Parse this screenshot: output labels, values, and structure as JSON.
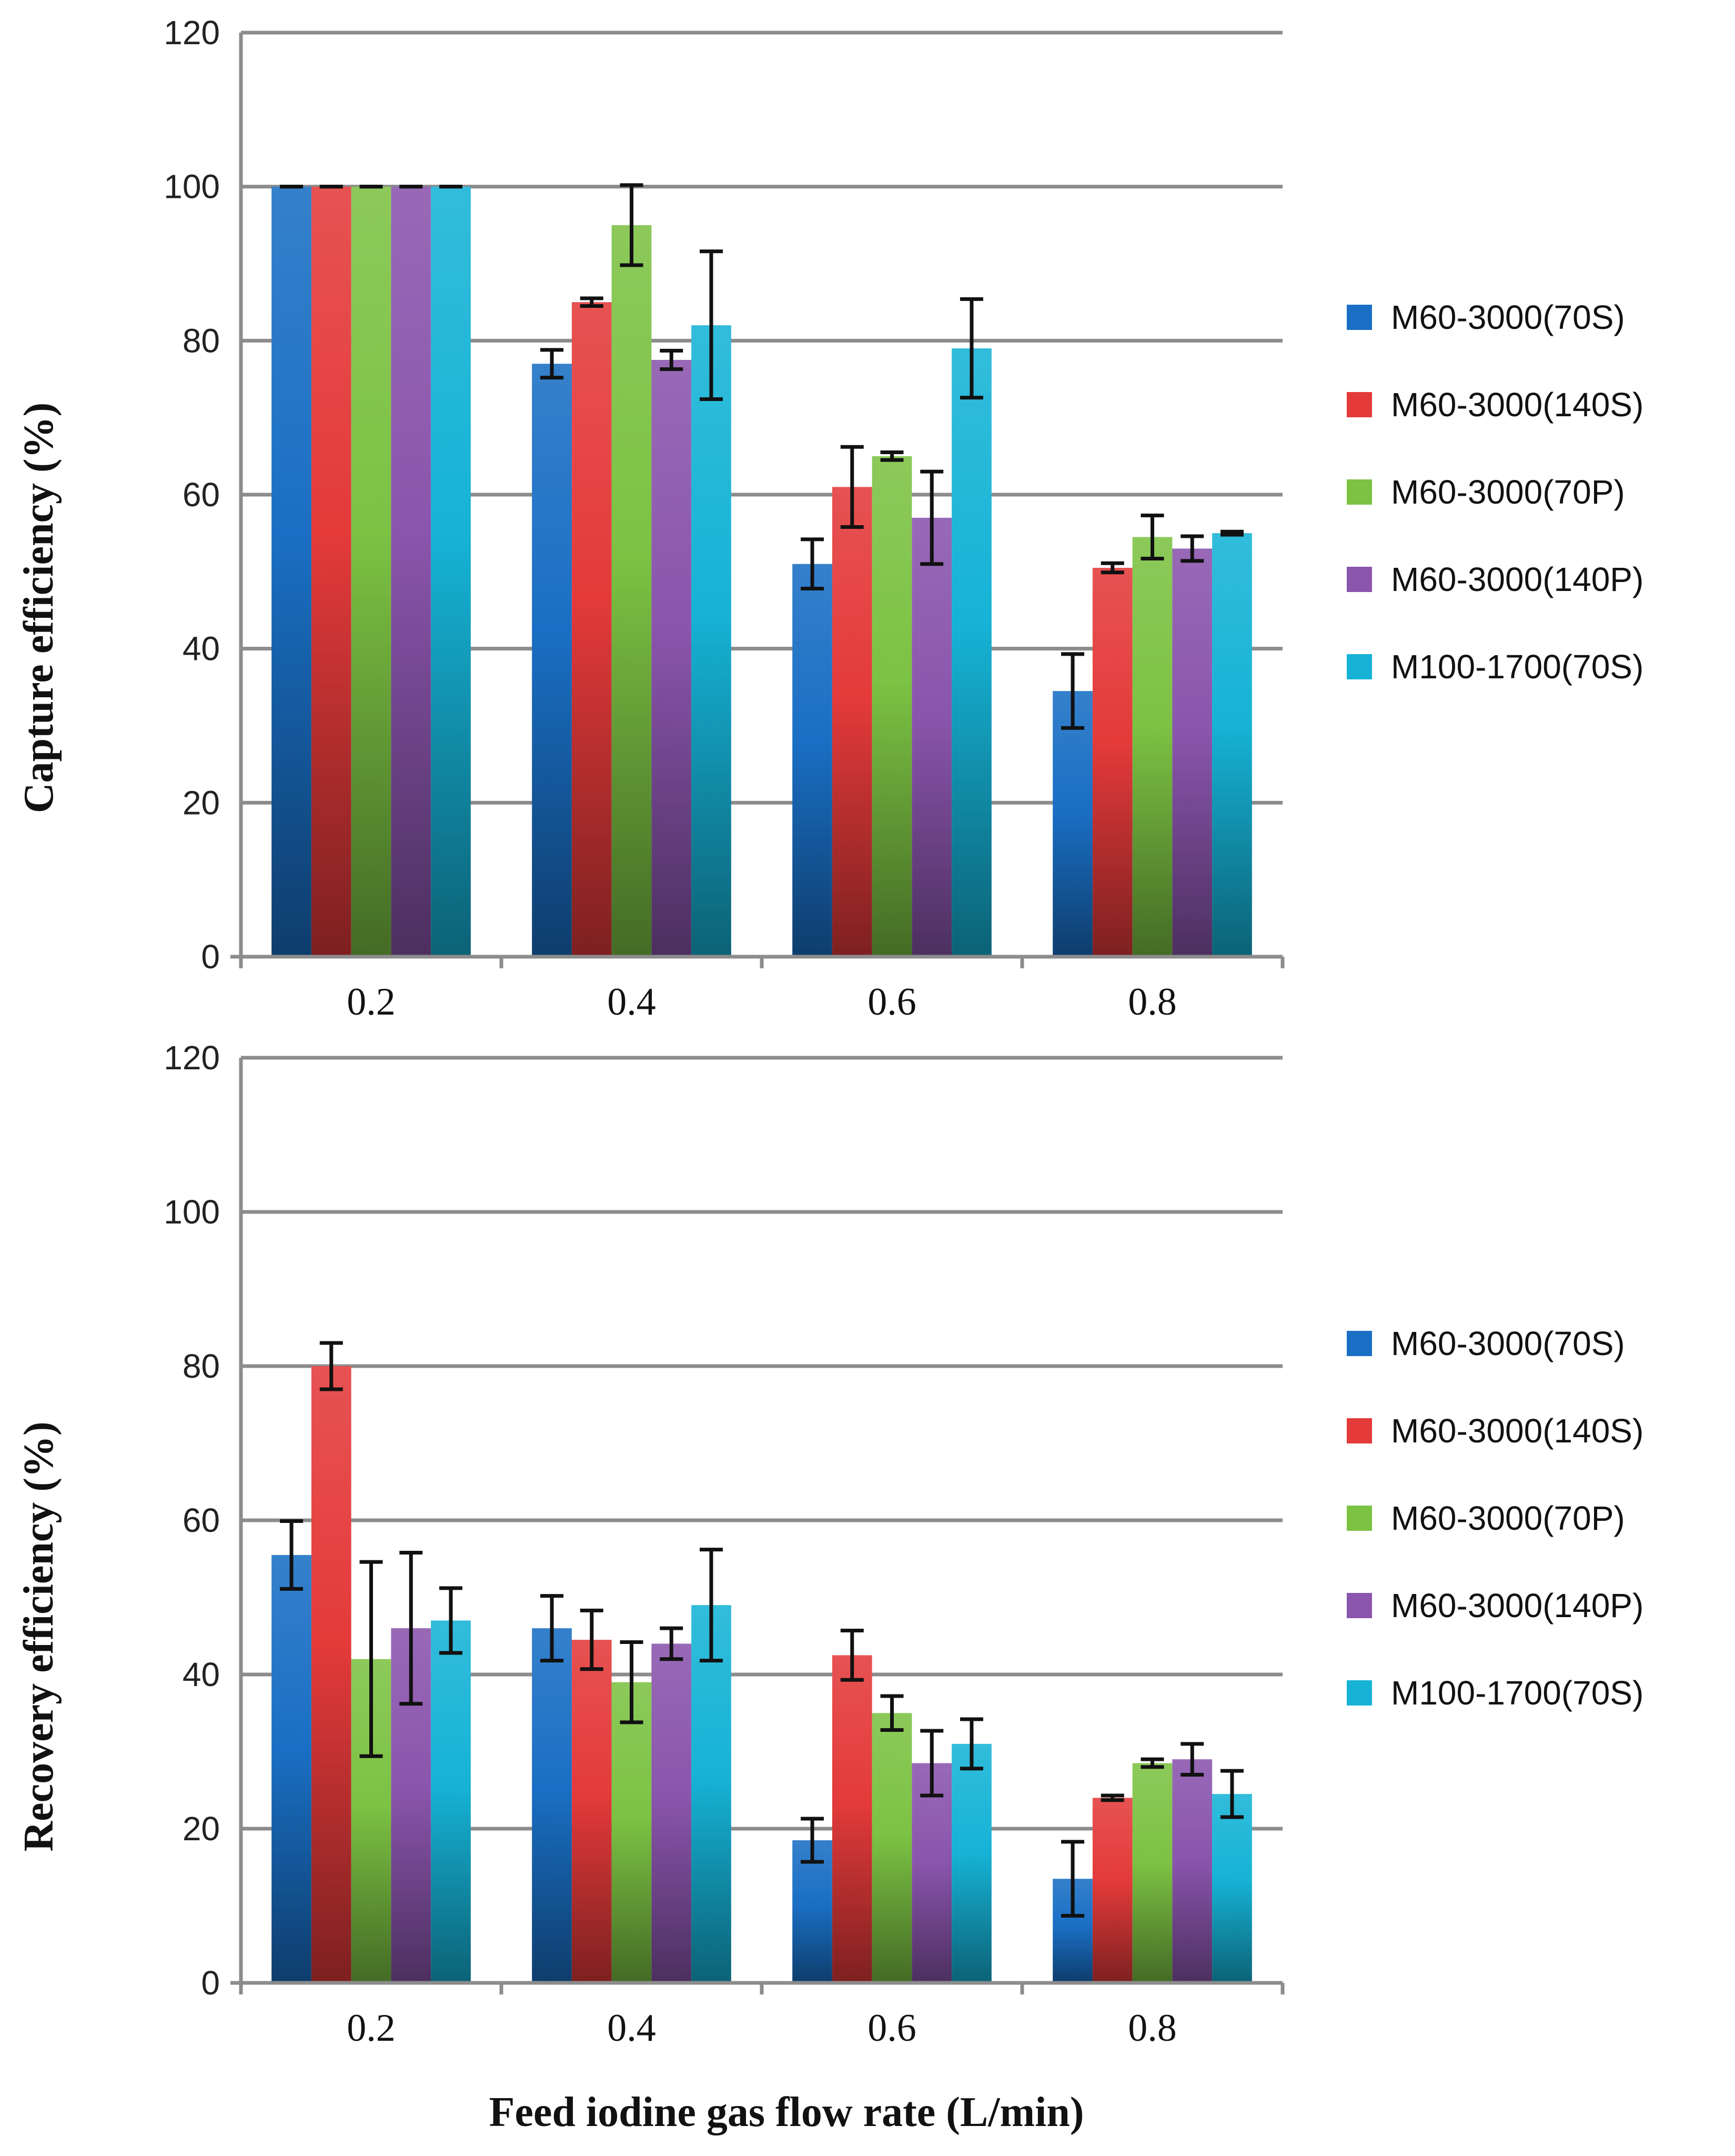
{
  "figure": {
    "xlabel": "Feed iodine gas flow rate (L/min)"
  },
  "colors": {
    "M60-3000(70S)": "#1a6fc4",
    "M60-3000(140S)": "#e43a3a",
    "M60-3000(70P)": "#7cc243",
    "M60-3000(140P)": "#8a55ad",
    "M100-1700(70S)": "#16b3d6"
  },
  "chart_data": [
    {
      "type": "bar",
      "title": "",
      "ylabel": "Capture efficiency (%)",
      "xlabel": "",
      "ylim": [
        0,
        120
      ],
      "yticks": [
        "0",
        "20",
        "40",
        "60",
        "80",
        "100",
        "120"
      ],
      "categories": [
        "0.2",
        "0.4",
        "0.6",
        "0.8"
      ],
      "grid": true,
      "legend_position": "right",
      "series": [
        {
          "name": "M60-3000(70S)",
          "values": [
            100,
            77,
            51,
            34.5
          ],
          "errors": [
            0,
            1.8,
            3.2,
            4.8
          ]
        },
        {
          "name": "M60-3000(140S)",
          "values": [
            100,
            85,
            61,
            50.5
          ],
          "errors": [
            0,
            0.5,
            5.2,
            0.6
          ]
        },
        {
          "name": "M60-3000(70P)",
          "values": [
            100,
            95,
            65,
            54.5
          ],
          "errors": [
            0,
            5.2,
            0.5,
            2.8
          ]
        },
        {
          "name": "M60-3000(140P)",
          "values": [
            100,
            77.5,
            57,
            53
          ],
          "errors": [
            0,
            1.2,
            6,
            1.6
          ]
        },
        {
          "name": "M100-1700(70S)",
          "values": [
            100,
            82,
            79,
            55
          ],
          "errors": [
            0,
            9.6,
            6.4,
            0.2
          ]
        }
      ]
    },
    {
      "type": "bar",
      "title": "",
      "ylabel": "Recovery efficiency (%)",
      "xlabel": "Feed iodine gas flow rate (L/min)",
      "ylim": [
        0,
        120
      ],
      "yticks": [
        "0",
        "20",
        "40",
        "60",
        "80",
        "100",
        "120"
      ],
      "categories": [
        "0.2",
        "0.4",
        "0.6",
        "0.8"
      ],
      "grid": true,
      "legend_position": "right",
      "series": [
        {
          "name": "M60-3000(70S)",
          "values": [
            55.5,
            46,
            18.5,
            13.5
          ],
          "errors": [
            4.4,
            4.2,
            2.8,
            4.8
          ]
        },
        {
          "name": "M60-3000(140S)",
          "values": [
            80,
            44.5,
            42.5,
            24
          ],
          "errors": [
            3,
            3.8,
            3.2,
            0.3
          ]
        },
        {
          "name": "M60-3000(70P)",
          "values": [
            42,
            39,
            35,
            28.5
          ],
          "errors": [
            12.6,
            5.2,
            2.2,
            0.5
          ]
        },
        {
          "name": "M60-3000(140P)",
          "values": [
            46,
            44,
            28.5,
            29
          ],
          "errors": [
            9.8,
            2,
            4.2,
            2
          ]
        },
        {
          "name": "M100-1700(70S)",
          "values": [
            47,
            49,
            31,
            24.5
          ],
          "errors": [
            4.2,
            7.2,
            3.2,
            3
          ]
        }
      ]
    }
  ]
}
